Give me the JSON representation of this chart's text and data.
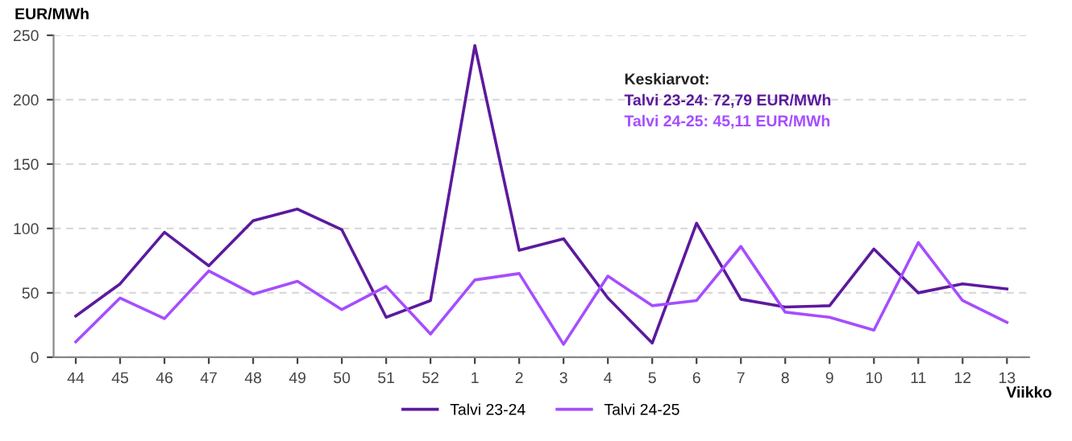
{
  "chart_data": {
    "type": "line",
    "ylabel": "EUR/MWh",
    "xlabel": "Viikko",
    "categories": [
      "44",
      "45",
      "46",
      "47",
      "48",
      "49",
      "50",
      "51",
      "52",
      "1",
      "2",
      "3",
      "4",
      "5",
      "6",
      "7",
      "8",
      "9",
      "10",
      "11",
      "12",
      "13"
    ],
    "series": [
      {
        "name": "Talvi 23-24",
        "color": "#5c1a9e",
        "values": [
          32,
          57,
          97,
          71,
          106,
          115,
          99,
          31,
          44,
          242,
          83,
          92,
          46,
          11,
          104,
          45,
          39,
          40,
          84,
          50,
          57,
          53
        ]
      },
      {
        "name": "Talvi 24-25",
        "color": "#a64dff",
        "values": [
          12,
          46,
          30,
          67,
          49,
          59,
          37,
          55,
          18,
          60,
          65,
          10,
          63,
          40,
          44,
          86,
          35,
          31,
          21,
          89,
          44,
          27
        ]
      }
    ],
    "ylim": [
      0,
      250
    ],
    "yticks": [
      0,
      50,
      100,
      150,
      200,
      250
    ],
    "grid": "y",
    "legend": "bottom",
    "marker": "none",
    "line_style": "solid",
    "annotations": [
      "Keskiarvot:",
      "Talvi 23-24: 72,79 EUR/MWh",
      "Talvi 24-25: 45,11 EUR/MWh"
    ]
  }
}
